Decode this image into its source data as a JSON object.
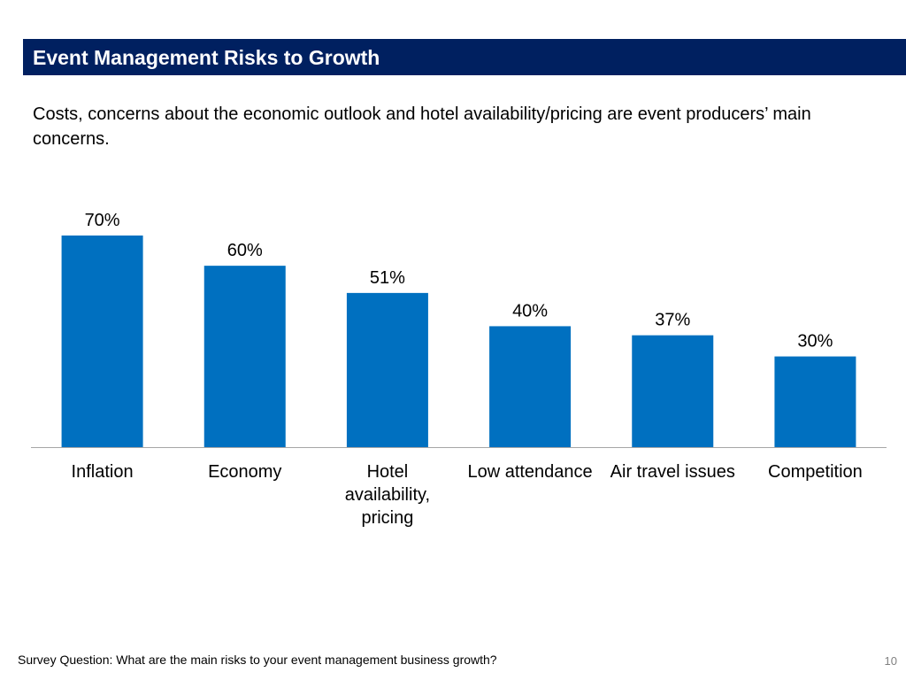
{
  "slide": {
    "title": "Event Management Risks to Growth",
    "subtitle": "Costs, concerns about the economic outlook and hotel availability/pricing are event producers’ main concerns.",
    "footnote": "Survey Question: What are the main risks to your event management business growth?",
    "page_number": "10"
  },
  "colors": {
    "bar": "#0070C0",
    "title_bg": "#002060",
    "axis": "#A6A6A6"
  },
  "chart_data": {
    "type": "bar",
    "title": "",
    "xlabel": "",
    "ylabel": "",
    "categories": [
      [
        "Inflation"
      ],
      [
        "Economy"
      ],
      [
        "Hotel",
        "availability,",
        "pricing"
      ],
      [
        "Low attendance"
      ],
      [
        "Air travel issues"
      ],
      [
        "Competition"
      ]
    ],
    "values": [
      70,
      60,
      51,
      40,
      37,
      30
    ],
    "data_labels": [
      "70%",
      "60%",
      "51%",
      "40%",
      "37%",
      "30%"
    ],
    "ylim": [
      0,
      70
    ],
    "grid": false,
    "legend": "none"
  }
}
